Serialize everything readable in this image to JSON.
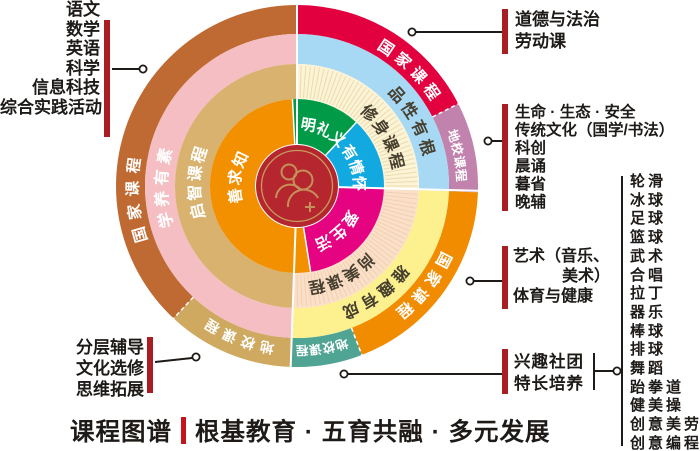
{
  "title": {
    "name": "课程图谱",
    "slogan": "根基教育 · 五育共融 · 多元发展"
  },
  "wheel": {
    "left": {
      "outer": "国家课程",
      "outcome": "学养有素",
      "course": "启智课程",
      "core": "善求知"
    },
    "top": {
      "outer": "国家课程",
      "outcome": "品性有根",
      "course": "修身课程",
      "core_left": "明礼义",
      "core_right": "有情怀"
    },
    "right": {
      "outer": "国家课程",
      "outcome": "雅趣有成",
      "course": "尚美课程",
      "core": "爱生活"
    },
    "wedges": {
      "right": "地校课程",
      "bottom": "地校课程",
      "bottom_left": "地校课程"
    },
    "colors": {
      "red": "#E2013E",
      "mauve": "#C282AE",
      "orange": "#F18C00",
      "teal": "#4FA493",
      "gold": "#CFA95F",
      "brown": "#C06A33",
      "lightblue": "#A7D8F4",
      "yellow": "#FCF08F",
      "pink": "#F4BEC3",
      "cream": "#FCF4D7",
      "peach": "#FADFC9",
      "tan": "#D8B26E",
      "green": "#019B48",
      "blue": "#12A9E0",
      "magenta": "#E50381",
      "orange_inner": "#F39000",
      "center": "#B5262E",
      "logo_gold": "#C89C5F",
      "bar": "#A91E23",
      "title_bar": "#C2151C",
      "ring_text_dark": "#47402F",
      "line": "#1D1A17"
    }
  },
  "callouts": {
    "subjects": [
      "语文",
      "数学",
      "英语",
      "科学",
      "信息科技",
      "综合实践活动"
    ],
    "moral": [
      "道德与法治",
      "劳动课"
    ],
    "school_programs": [
      "生命 · 生态 · 安全",
      "传统文化（国学/书法）",
      "科创",
      "晨诵",
      "暮省",
      "晚辅"
    ],
    "art_pe": [
      "艺术（音乐、",
      "美术）",
      "体育与健康"
    ],
    "interest": [
      "兴趣社团",
      "特长培养"
    ],
    "clubs": [
      "轮滑",
      "冰球",
      "足球",
      "篮球",
      "武术",
      "合唱",
      "拉丁",
      "器乐",
      "棒球",
      "排球",
      "舞蹈",
      "跆拳道",
      "健美操",
      "创意美劳",
      "创意编程"
    ],
    "tutoring": [
      "分层辅导",
      "文化选修",
      "思维拓展"
    ]
  }
}
